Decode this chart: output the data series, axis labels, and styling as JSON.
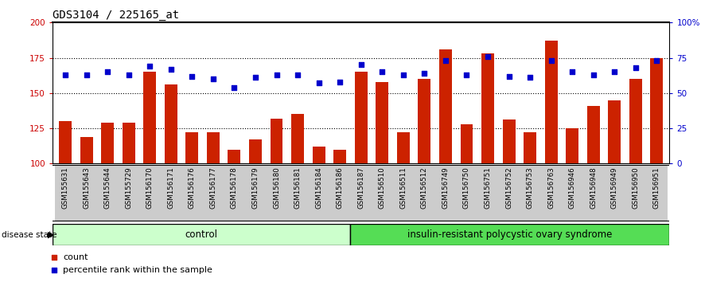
{
  "title": "GDS3104 / 225165_at",
  "samples": [
    "GSM155631",
    "GSM155643",
    "GSM155644",
    "GSM155729",
    "GSM156170",
    "GSM156171",
    "GSM156176",
    "GSM156177",
    "GSM156178",
    "GSM156179",
    "GSM156180",
    "GSM156181",
    "GSM156184",
    "GSM156186",
    "GSM156187",
    "GSM156510",
    "GSM156511",
    "GSM156512",
    "GSM156749",
    "GSM156750",
    "GSM156751",
    "GSM156752",
    "GSM156753",
    "GSM156763",
    "GSM156946",
    "GSM156948",
    "GSM156949",
    "GSM156950",
    "GSM156951"
  ],
  "bar_values": [
    130,
    119,
    129,
    129,
    165,
    156,
    122,
    122,
    110,
    117,
    132,
    135,
    112,
    110,
    165,
    158,
    122,
    160,
    181,
    128,
    178,
    131,
    122,
    187,
    125,
    141,
    145,
    160,
    175
  ],
  "percentile_values": [
    63,
    63,
    65,
    63,
    69,
    67,
    62,
    60,
    54,
    61,
    63,
    63,
    57,
    58,
    70,
    65,
    63,
    64,
    73,
    63,
    76,
    62,
    61,
    73,
    65,
    63,
    65,
    68,
    73
  ],
  "control_count": 14,
  "bar_color": "#cc2200",
  "percentile_color": "#0000cc",
  "control_label": "control",
  "disease_label": "insulin-resistant polycystic ovary syndrome",
  "control_bg": "#ccffcc",
  "disease_bg": "#55dd55",
  "ylim_left": [
    100,
    200
  ],
  "ylim_right": [
    0,
    100
  ],
  "yticks_left": [
    100,
    125,
    150,
    175,
    200
  ],
  "yticks_right": [
    0,
    25,
    50,
    75,
    100
  ],
  "ytick_labels_right": [
    "0",
    "25",
    "50",
    "75",
    "100%"
  ],
  "grid_values": [
    125,
    150,
    175
  ],
  "title_fontsize": 10,
  "tick_fontsize": 7.5,
  "label_fontsize": 8,
  "tick_color_left": "#cc0000",
  "tick_color_right": "#0000cc"
}
